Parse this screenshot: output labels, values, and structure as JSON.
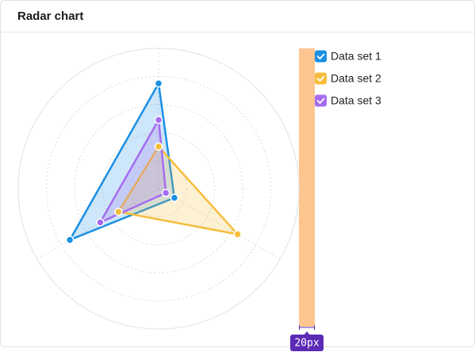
{
  "chart_data": {
    "type": "radar",
    "title": "Radar chart",
    "categories": [
      null,
      null,
      null
    ],
    "rlim": [
      0,
      100
    ],
    "grid": true,
    "legend": "top-right",
    "annotation": "20px",
    "series": [
      {
        "name": "Data set 1",
        "color": "#1a8fe3",
        "values": [
          75,
          13,
          73
        ]
      },
      {
        "name": "Data set 2",
        "color": "#f6bd3b",
        "values": [
          30,
          65,
          33
        ]
      },
      {
        "name": "Data set 3",
        "color": "#a66cf0",
        "values": [
          49,
          6,
          48
        ]
      }
    ]
  }
}
